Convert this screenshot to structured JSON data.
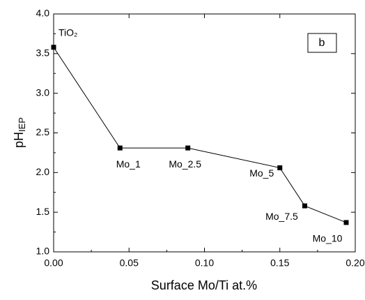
{
  "chart_data": {
    "type": "line",
    "xlabel": "Surface Mo/Ti at.%",
    "ylabel": "pH",
    "ylabel_sub": "IEP",
    "annotation": "b",
    "x": [
      0,
      0.044,
      0.089,
      0.15,
      0.1665,
      0.194
    ],
    "series": [
      {
        "color": "#000000",
        "values": [
          3.58,
          2.31,
          2.31,
          2.06,
          1.58,
          1.37
        ],
        "point_labels": [
          "TiO₂",
          "Mo_1",
          "Mo_2.5",
          "Mo_5",
          "Mo_7.5",
          "Mo_10"
        ]
      }
    ],
    "xlim": [
      0,
      0.2
    ],
    "xticks": [
      {
        "value": 0,
        "label": "0.00"
      },
      {
        "value": 0.05,
        "label": "0.05"
      },
      {
        "value": 0.1,
        "label": "0.10"
      },
      {
        "value": 0.15,
        "label": "0.15"
      },
      {
        "value": 0.2,
        "label": "0.20"
      }
    ],
    "xminorticks": [
      0.025,
      0.075,
      0.125,
      0.175
    ],
    "ylim": [
      1,
      4
    ],
    "yticks": [
      {
        "value": 1,
        "label": "1.0"
      },
      {
        "value": 1.5,
        "label": "1.5"
      },
      {
        "value": 2,
        "label": "2.0"
      },
      {
        "value": 2.5,
        "label": "2.5"
      },
      {
        "value": 3,
        "label": "3.0"
      },
      {
        "value": 3.5,
        "label": "3.5"
      },
      {
        "value": 4,
        "label": "4.0"
      }
    ],
    "yminorticks": [
      1.25,
      1.75,
      2.25,
      2.75,
      3.25,
      3.75
    ]
  }
}
